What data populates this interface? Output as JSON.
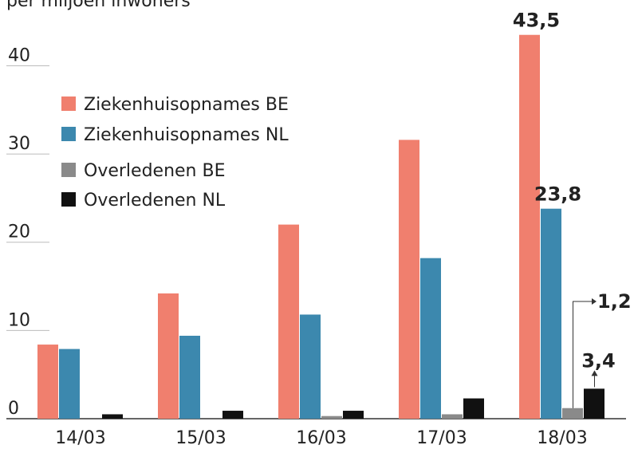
{
  "chart_data": {
    "type": "bar",
    "subtitle": "per miljoen inwoners",
    "categories": [
      "14/03",
      "15/03",
      "16/03",
      "17/03",
      "18/03"
    ],
    "series": [
      {
        "name": "Ziekenhuisopnames BE",
        "color": "#f07f6e",
        "values": [
          8.4,
          14.2,
          22.0,
          31.6,
          43.5
        ],
        "value_labels": [
          null,
          null,
          null,
          null,
          "43,5"
        ]
      },
      {
        "name": "Ziekenhuisopnames NL",
        "color": "#3c88ae",
        "values": [
          7.9,
          9.4,
          11.8,
          18.2,
          23.8
        ],
        "value_labels": [
          null,
          null,
          null,
          null,
          "23,8"
        ]
      },
      {
        "name": "Overledenen BE",
        "color": "#8a8a8a",
        "values": [
          0,
          0,
          0.3,
          0.5,
          1.2
        ],
        "value_labels": [
          null,
          null,
          null,
          null,
          "1,2"
        ]
      },
      {
        "name": "Overledenen NL",
        "color": "#111111",
        "values": [
          0.5,
          0.9,
          0.9,
          2.3,
          3.4
        ],
        "value_labels": [
          null,
          null,
          null,
          null,
          "3,4"
        ]
      }
    ],
    "ylim": [
      0,
      47
    ],
    "yticks": [
      0,
      10,
      20,
      30,
      40
    ],
    "grid": true,
    "legend": "upper left"
  }
}
